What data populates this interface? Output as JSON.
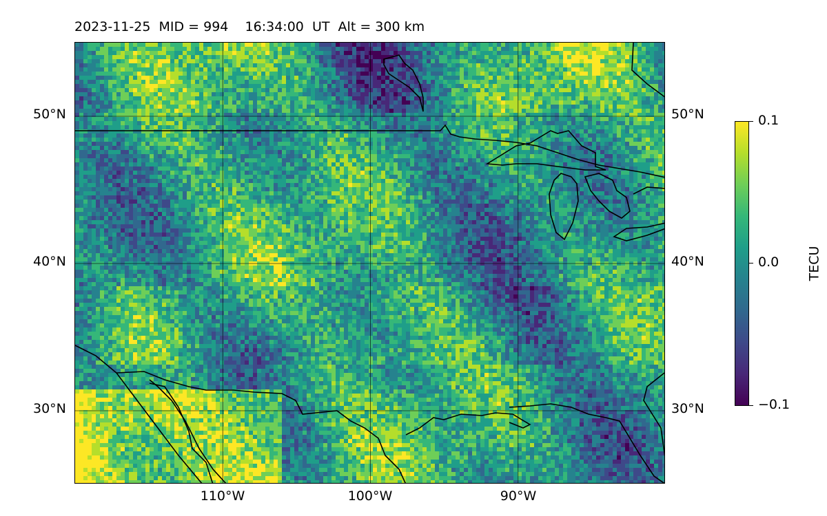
{
  "title": "2023-11-25  MID = 994    16:34:00  UT  Alt = 300 km",
  "map": {
    "lon_range": [
      -120,
      -80
    ],
    "lat_range": [
      25,
      55
    ],
    "lat_ticks": [
      {
        "value": 50,
        "label": "50°N"
      },
      {
        "value": 40,
        "label": "40°N"
      },
      {
        "value": 30,
        "label": "30°N"
      }
    ],
    "lon_ticks": [
      {
        "value": -110,
        "label": "110°W"
      },
      {
        "value": -100,
        "label": "100°W"
      },
      {
        "value": -90,
        "label": "90°W"
      }
    ],
    "gridlines": true
  },
  "colorbar": {
    "label": "TECU",
    "min": -0.1,
    "max": 0.1,
    "ticks": [
      {
        "value": 0.1,
        "label": "0.1"
      },
      {
        "value": 0.0,
        "label": "0.0"
      },
      {
        "value": -0.1,
        "label": "−0.1"
      }
    ],
    "colormap": "viridis"
  },
  "colors": {
    "viridis_stops": [
      "#440154",
      "#482878",
      "#3e4989",
      "#31688e",
      "#26828e",
      "#1f9e89",
      "#35b779",
      "#6ece58",
      "#b5de2b",
      "#fde725"
    ],
    "coastline": "#000000",
    "gridline": "#000000"
  }
}
